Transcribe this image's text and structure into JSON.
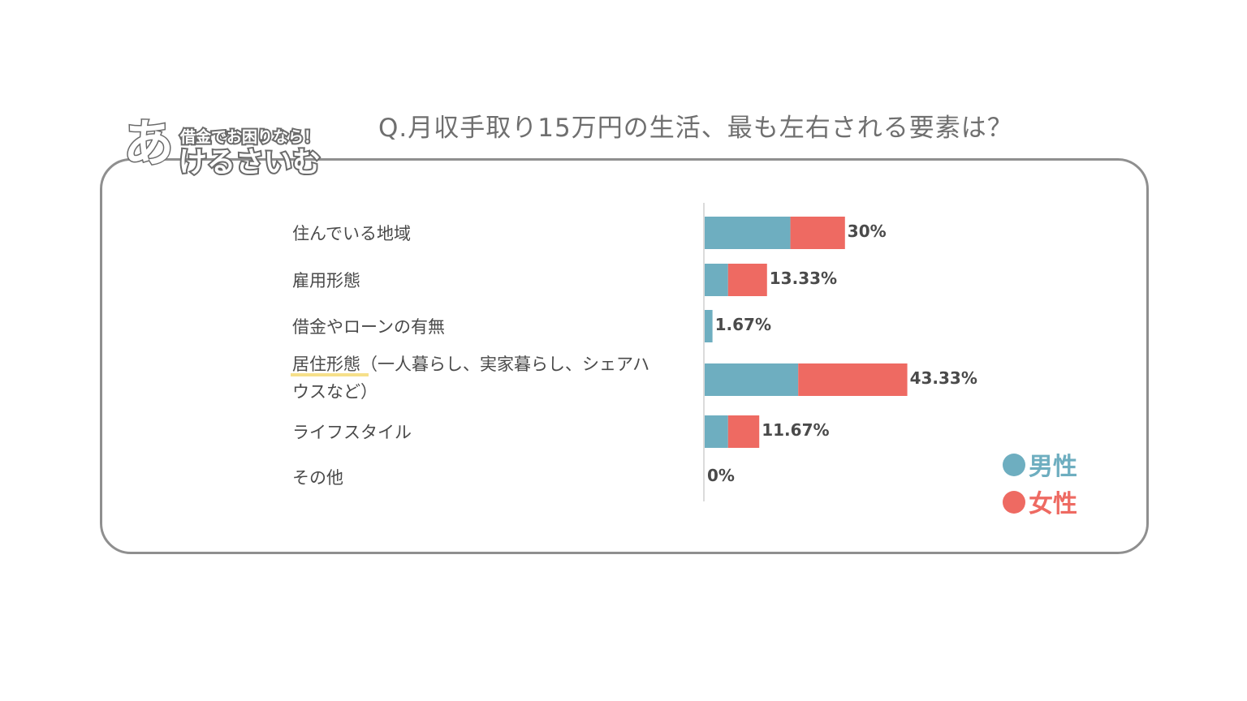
{
  "logo": {
    "tagline": "借金でお困りなら！",
    "big_letter": "あ",
    "name_rest": "けるさいむ"
  },
  "chart_data": {
    "type": "bar",
    "orientation": "horizontal",
    "stacked": true,
    "title": "Q.月収手取り15万円の生活、最も左右される要素は？",
    "categories": [
      "住んでいる地域",
      "雇用形態",
      "借金やローンの有無",
      "居住形態（一人暮らし、実家暮らし、シェアハウスなど）",
      "ライフスタイル",
      "その他"
    ],
    "category_lines": [
      [
        "住んでいる地域"
      ],
      [
        "雇用形態"
      ],
      [
        "借金やローンの有無"
      ],
      [
        "居住形態（一人暮らし、実家暮らし、シェアハ",
        "ウスなど）"
      ],
      [
        "ライフスタイル"
      ],
      [
        "その他"
      ]
    ],
    "series": [
      {
        "name": "男性",
        "color": "#6eaec0",
        "values": [
          18.33,
          5.0,
          1.67,
          20.0,
          5.0,
          0
        ]
      },
      {
        "name": "女性",
        "color": "#ee6a62",
        "values": [
          11.67,
          8.33,
          0,
          23.33,
          6.67,
          0
        ]
      }
    ],
    "totals": [
      30,
      13.33,
      1.67,
      43.33,
      11.67,
      0
    ],
    "total_labels": [
      "30%",
      "13.33%",
      "1.67%",
      "43.33%",
      "11.67%",
      "0%"
    ],
    "xlim": [
      0,
      50
    ],
    "legend": {
      "position": "bottom-right",
      "marker": "●"
    },
    "grid": false
  }
}
